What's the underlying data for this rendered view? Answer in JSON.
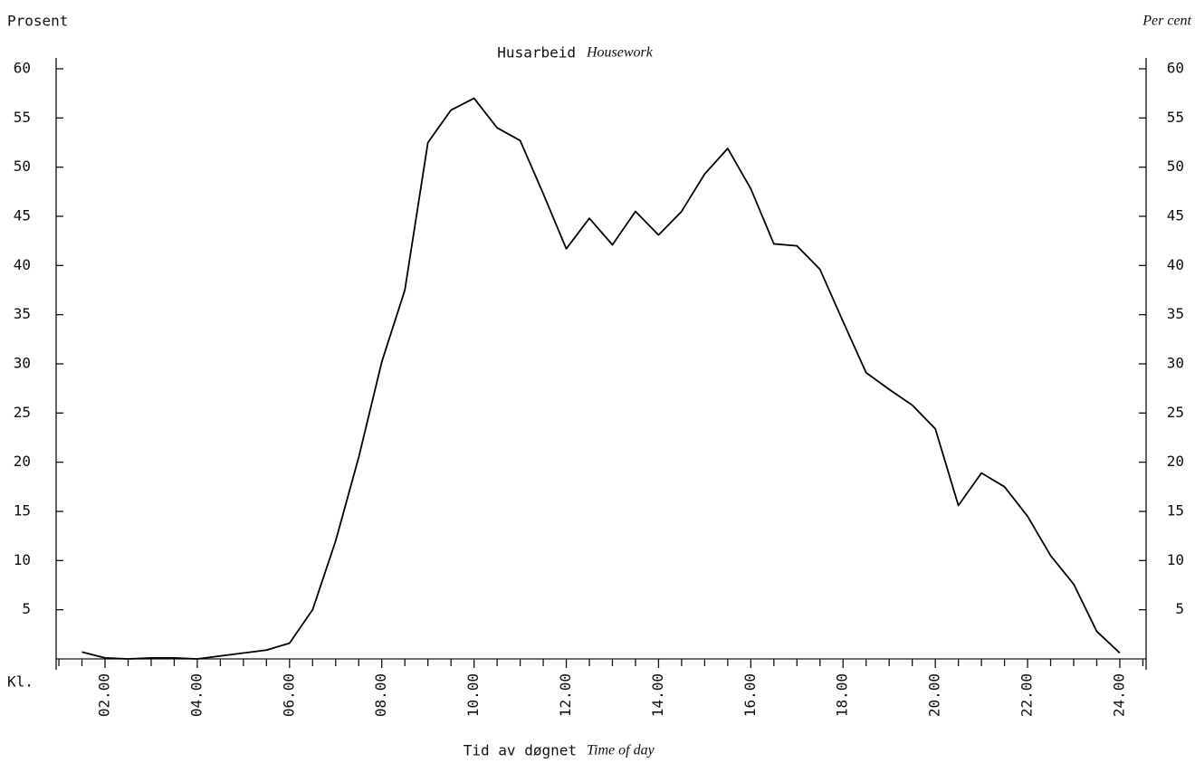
{
  "chart_data": {
    "type": "line",
    "title": "Husarbeid",
    "title_en": "Housework",
    "ylabel": "Prosent",
    "y2label": "Per cent",
    "xlabel": "Tid av døgnet",
    "xlabel_en": "Time of day",
    "xaxis_prefix": "Kl.",
    "x": [
      1.5,
      2,
      2.5,
      3,
      3.5,
      4,
      4.5,
      5,
      5.5,
      6,
      6.5,
      7,
      7.5,
      8,
      8.5,
      9,
      9.5,
      10,
      10.5,
      11,
      11.5,
      12,
      12.5,
      13,
      13.5,
      14,
      14.5,
      15,
      15.5,
      16,
      16.5,
      17,
      17.5,
      18,
      18.5,
      19,
      19.5,
      20,
      20.5,
      21,
      21.5,
      22,
      22.5,
      23,
      23.5,
      24
    ],
    "series": [
      {
        "color": "#000000",
        "values": [
          0.7,
          0.1,
          0.0,
          0.1,
          0.1,
          0.0,
          0.3,
          0.6,
          0.9,
          1.6,
          5.0,
          12.0,
          20.5,
          30.2,
          37.5,
          52.5,
          55.8,
          57.0,
          54.0,
          52.7,
          47.3,
          41.7,
          44.8,
          42.1,
          45.5,
          43.1,
          45.5,
          49.3,
          51.9,
          47.8,
          42.2,
          42.0,
          39.6,
          34.3,
          29.1,
          27.4,
          25.8,
          23.4,
          15.6,
          18.9,
          17.5,
          14.5,
          10.5,
          7.6,
          2.8,
          0.6
        ]
      }
    ],
    "xlim": [
      0.94,
      24.57
    ],
    "xticks": [
      {
        "value": 2,
        "label": "02.00"
      },
      {
        "value": 4,
        "label": "04.00"
      },
      {
        "value": 6,
        "label": "06.00"
      },
      {
        "value": 8,
        "label": "08.00"
      },
      {
        "value": 10,
        "label": "10.00"
      },
      {
        "value": 12,
        "label": "12.00"
      },
      {
        "value": 14,
        "label": "14.00"
      },
      {
        "value": 16,
        "label": "16.00"
      },
      {
        "value": 18,
        "label": "18.00"
      },
      {
        "value": 20,
        "label": "20.00"
      },
      {
        "value": 22,
        "label": "22.00"
      },
      {
        "value": 24,
        "label": "24.00"
      }
    ],
    "xminorticks": [
      1,
      1.5,
      2.5,
      3,
      3.5,
      4.5,
      5,
      5.5,
      6.5,
      7,
      7.5,
      8.5,
      9,
      9.5,
      10.5,
      11,
      11.5,
      12.5,
      13,
      13.5,
      14.5,
      15,
      15.5,
      16.5,
      17,
      17.5,
      18.5,
      19,
      19.5,
      20.5,
      21,
      21.5,
      22.5,
      23,
      23.5,
      24.5
    ],
    "ylim": [
      0,
      60
    ],
    "yticks": [
      5,
      10,
      15,
      20,
      25,
      30,
      35,
      40,
      45,
      50,
      55,
      60
    ],
    "y2lim": [
      0,
      60
    ],
    "y2ticks": [
      5,
      10,
      15,
      20,
      25,
      30,
      35,
      40,
      45,
      50,
      55,
      60
    ],
    "grid": false
  }
}
